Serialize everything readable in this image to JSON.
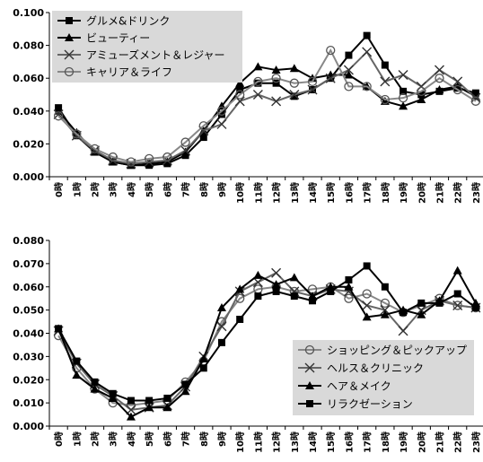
{
  "chart_data": [
    {
      "type": "line",
      "x": [
        "0時",
        "1時",
        "2時",
        "3時",
        "4時",
        "5時",
        "6時",
        "7時",
        "8時",
        "9時",
        "10時",
        "11時",
        "12時",
        "13時",
        "14時",
        "15時",
        "16時",
        "17時",
        "18時",
        "19時",
        "20時",
        "21時",
        "22時",
        "23時"
      ],
      "ylim": [
        0,
        0.1
      ],
      "yticks": [
        "0.000",
        "0.020",
        "0.040",
        "0.060",
        "0.080",
        "0.100"
      ],
      "legend": "top-left",
      "grid": false,
      "series": [
        {
          "name": "グルメ&ドリンク",
          "marker": "square",
          "values": [
            0.042,
            0.025,
            0.015,
            0.009,
            0.007,
            0.007,
            0.008,
            0.013,
            0.024,
            0.038,
            0.053,
            0.057,
            0.057,
            0.049,
            0.053,
            0.06,
            0.074,
            0.086,
            0.068,
            0.052,
            0.05,
            0.052,
            0.054,
            0.051
          ]
        },
        {
          "name": "ビューティー",
          "marker": "triangle",
          "values": [
            0.04,
            0.027,
            0.015,
            0.009,
            0.007,
            0.008,
            0.009,
            0.015,
            0.028,
            0.043,
            0.057,
            0.067,
            0.065,
            0.066,
            0.06,
            0.062,
            0.062,
            0.055,
            0.046,
            0.043,
            0.047,
            0.053,
            0.055,
            0.049
          ]
        },
        {
          "name": "アミューズメント＆レジャー",
          "marker": "x",
          "values": [
            0.038,
            0.025,
            0.016,
            0.01,
            0.008,
            0.009,
            0.01,
            0.016,
            0.028,
            0.032,
            0.046,
            0.05,
            0.046,
            0.05,
            0.053,
            0.06,
            0.065,
            0.076,
            0.058,
            0.062,
            0.055,
            0.065,
            0.058,
            0.048
          ]
        },
        {
          "name": "キャリア＆ライフ",
          "marker": "circle",
          "values": [
            0.037,
            0.026,
            0.017,
            0.012,
            0.009,
            0.011,
            0.012,
            0.021,
            0.031,
            0.04,
            0.05,
            0.058,
            0.06,
            0.057,
            0.058,
            0.077,
            0.055,
            0.055,
            0.047,
            0.048,
            0.052,
            0.06,
            0.053,
            0.046
          ]
        }
      ]
    },
    {
      "type": "line",
      "x": [
        "0時",
        "1時",
        "2時",
        "3時",
        "4時",
        "5時",
        "6時",
        "7時",
        "8時",
        "9時",
        "10時",
        "11時",
        "12時",
        "13時",
        "14時",
        "15時",
        "16時",
        "17時",
        "18時",
        "19時",
        "20時",
        "21時",
        "22時",
        "23時"
      ],
      "ylim": [
        0,
        0.08
      ],
      "yticks": [
        "0.000",
        "0.010",
        "0.020",
        "0.030",
        "0.040",
        "0.050",
        "0.060",
        "0.070",
        "0.080"
      ],
      "legend": "bottom-right",
      "grid": false,
      "series": [
        {
          "name": "ショッピング＆ピックアップ",
          "marker": "circle",
          "values": [
            0.039,
            0.025,
            0.016,
            0.01,
            0.009,
            0.01,
            0.011,
            0.019,
            0.028,
            0.045,
            0.055,
            0.059,
            0.06,
            0.058,
            0.059,
            0.06,
            0.055,
            0.057,
            0.053,
            0.049,
            0.052,
            0.055,
            0.052,
            0.051
          ]
        },
        {
          "name": "ヘルス＆クリニック",
          "marker": "x",
          "values": [
            0.041,
            0.027,
            0.018,
            0.013,
            0.007,
            0.008,
            0.009,
            0.017,
            0.03,
            0.043,
            0.058,
            0.062,
            0.066,
            0.058,
            0.056,
            0.059,
            0.058,
            0.052,
            0.05,
            0.041,
            0.05,
            0.054,
            0.052,
            0.051
          ]
        },
        {
          "name": "ヘア＆メイク",
          "marker": "triangle",
          "values": [
            0.042,
            0.022,
            0.016,
            0.012,
            0.004,
            0.008,
            0.008,
            0.015,
            0.029,
            0.051,
            0.059,
            0.065,
            0.061,
            0.064,
            0.056,
            0.06,
            0.06,
            0.047,
            0.048,
            0.05,
            0.048,
            0.054,
            0.067,
            0.053
          ]
        },
        {
          "name": "リラクゼーション",
          "marker": "square",
          "values": [
            0.042,
            0.028,
            0.019,
            0.014,
            0.011,
            0.011,
            0.012,
            0.018,
            0.025,
            0.036,
            0.046,
            0.056,
            0.058,
            0.056,
            0.054,
            0.058,
            0.063,
            0.069,
            0.06,
            0.049,
            0.053,
            0.053,
            0.057,
            0.051
          ]
        }
      ]
    }
  ]
}
